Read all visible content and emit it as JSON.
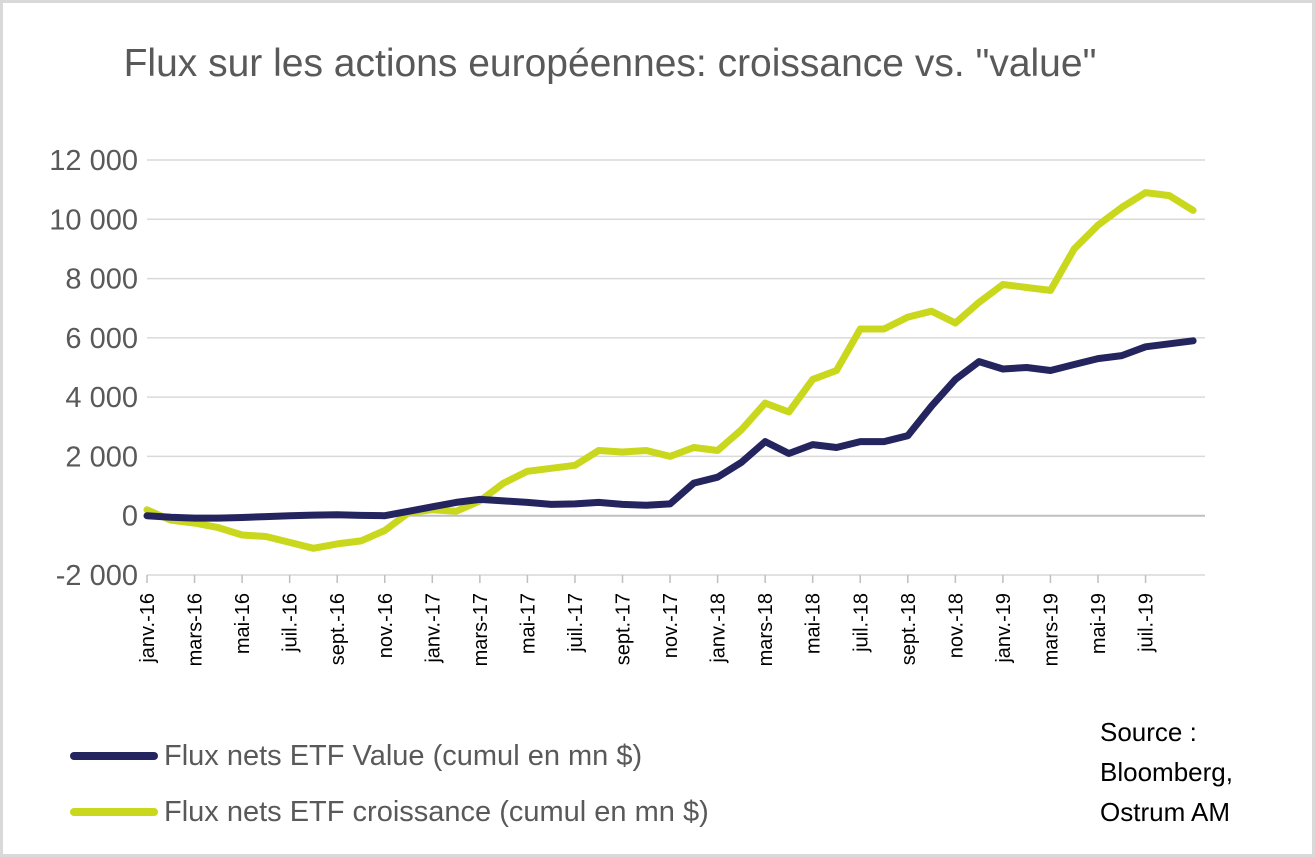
{
  "chart_data": {
    "type": "line",
    "title": "Flux sur les actions européennes: croissance vs. \"value\"",
    "xlabel": "",
    "ylabel": "",
    "ylim": [
      -2000,
      12000
    ],
    "yticks": [
      -2000,
      0,
      2000,
      4000,
      6000,
      8000,
      10000,
      12000
    ],
    "ytick_labels": [
      "-2 000",
      "0",
      "2 000",
      "4 000",
      "6 000",
      "8 000",
      "10 000",
      "12 000"
    ],
    "x_start": "janv.-16",
    "x_end": "sept.-19",
    "xtick_labels": [
      "janv.-16",
      "mars-16",
      "mai-16",
      "juil.-16",
      "sept.-16",
      "nov.-16",
      "janv.-17",
      "mars-17",
      "mai-17",
      "juil.-17",
      "sept.-17",
      "nov.-17",
      "janv.-18",
      "mars-18",
      "mai-18",
      "juil.-18",
      "sept.-18",
      "nov.-18",
      "janv.-19",
      "mars-19",
      "mai-19",
      "juil.-19"
    ],
    "grid": true,
    "legend_position": "bottom-left",
    "series": [
      {
        "name": "Flux nets ETF Value (cumul en mn $)",
        "color": "#24245e",
        "points": [
          [
            "janv.-16",
            0
          ],
          [
            "févr.-16",
            -50
          ],
          [
            "mars-16",
            -80
          ],
          [
            "avr.-16",
            -80
          ],
          [
            "mai-16",
            -60
          ],
          [
            "juin-16",
            -30
          ],
          [
            "juil.-16",
            0
          ],
          [
            "août-16",
            20
          ],
          [
            "sept.-16",
            30
          ],
          [
            "oct.-16",
            10
          ],
          [
            "nov.-16",
            0
          ],
          [
            "déc.-16",
            150
          ],
          [
            "janv.-17",
            300
          ],
          [
            "févr.-17",
            450
          ],
          [
            "mars-17",
            550
          ],
          [
            "avr.-17",
            500
          ],
          [
            "mai-17",
            450
          ],
          [
            "juin-17",
            380
          ],
          [
            "juil.-17",
            400
          ],
          [
            "août-17",
            450
          ],
          [
            "sept.-17",
            380
          ],
          [
            "oct.-17",
            350
          ],
          [
            "nov.-17",
            400
          ],
          [
            "déc.-17",
            1100
          ],
          [
            "janv.-18",
            1300
          ],
          [
            "févr.-18",
            1800
          ],
          [
            "mars-18",
            2500
          ],
          [
            "avr.-18",
            2100
          ],
          [
            "mai-18",
            2400
          ],
          [
            "juin-18",
            2300
          ],
          [
            "juil.-18",
            2500
          ],
          [
            "août-18",
            2500
          ],
          [
            "sept.-18",
            2700
          ],
          [
            "oct.-18",
            3700
          ],
          [
            "nov.-18",
            4600
          ],
          [
            "déc.-18",
            5200
          ],
          [
            "janv.-19",
            4950
          ],
          [
            "févr.-19",
            5000
          ],
          [
            "mars-19",
            4900
          ],
          [
            "avr.-19",
            5100
          ],
          [
            "mai-19",
            5300
          ],
          [
            "juin-19",
            5400
          ],
          [
            "juil.-19",
            5700
          ],
          [
            "août-19",
            5800
          ],
          [
            "sept.-19",
            5900
          ]
        ]
      },
      {
        "name": "Flux nets ETF croissance (cumul en mn $)",
        "color": "#c9d81c",
        "points": [
          [
            "janv.-16",
            200
          ],
          [
            "févr.-16",
            -150
          ],
          [
            "mars-16",
            -250
          ],
          [
            "avr.-16",
            -400
          ],
          [
            "mai-16",
            -650
          ],
          [
            "juin-16",
            -700
          ],
          [
            "juil.-16",
            -900
          ],
          [
            "août-16",
            -1100
          ],
          [
            "sept.-16",
            -950
          ],
          [
            "oct.-16",
            -850
          ],
          [
            "nov.-16",
            -500
          ],
          [
            "déc.-16",
            100
          ],
          [
            "janv.-17",
            200
          ],
          [
            "févr.-17",
            150
          ],
          [
            "mars-17",
            500
          ],
          [
            "avr.-17",
            1100
          ],
          [
            "mai-17",
            1500
          ],
          [
            "juin-17",
            1600
          ],
          [
            "juil.-17",
            1700
          ],
          [
            "août-17",
            2200
          ],
          [
            "sept.-17",
            2150
          ],
          [
            "oct.-17",
            2200
          ],
          [
            "nov.-17",
            2000
          ],
          [
            "déc.-17",
            2300
          ],
          [
            "janv.-18",
            2200
          ],
          [
            "févr.-18",
            2900
          ],
          [
            "mars-18",
            3800
          ],
          [
            "avr.-18",
            3500
          ],
          [
            "mai-18",
            4600
          ],
          [
            "juin-18",
            4900
          ],
          [
            "juil.-18",
            6300
          ],
          [
            "août-18",
            6300
          ],
          [
            "sept.-18",
            6700
          ],
          [
            "oct.-18",
            6900
          ],
          [
            "nov.-18",
            6500
          ],
          [
            "déc.-18",
            7200
          ],
          [
            "janv.-19",
            7800
          ],
          [
            "févr.-19",
            7700
          ],
          [
            "mars-19",
            7600
          ],
          [
            "avr.-19",
            9000
          ],
          [
            "mai-19",
            9800
          ],
          [
            "juin-19",
            10400
          ],
          [
            "juil.-19",
            10900
          ],
          [
            "août-19",
            10800
          ],
          [
            "sept.-19",
            10300
          ]
        ]
      }
    ]
  },
  "source": {
    "line1": "Source :",
    "line2": "Bloomberg,",
    "line3": "Ostrum AM"
  }
}
